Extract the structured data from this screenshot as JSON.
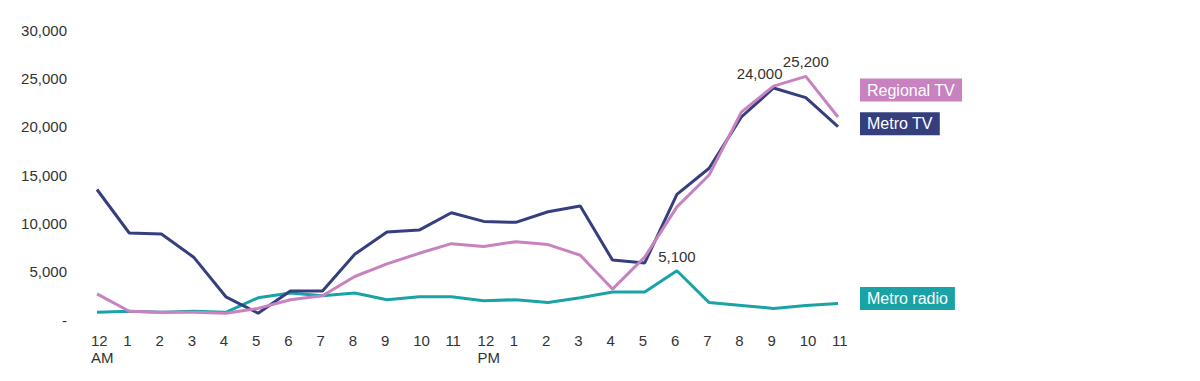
{
  "chart_data": {
    "type": "line",
    "categories": [
      "12\nAM",
      "1",
      "2",
      "3",
      "4",
      "5",
      "6",
      "7",
      "8",
      "9",
      "10",
      "11",
      "12\nPM",
      "1",
      "2",
      "3",
      "4",
      "5",
      "6",
      "7",
      "8",
      "9",
      "10",
      "11"
    ],
    "series": [
      {
        "name": "Regional TV",
        "color": "#c882c0",
        "values": [
          2700,
          900,
          800,
          800,
          700,
          1200,
          2100,
          2500,
          4500,
          5800,
          6900,
          7900,
          7600,
          8100,
          7800,
          6700,
          3200,
          6500,
          11700,
          15000,
          21500,
          24200,
          25200,
          21000
        ],
        "value_labels": [
          null,
          null,
          null,
          null,
          null,
          null,
          null,
          null,
          null,
          null,
          null,
          null,
          null,
          null,
          null,
          null,
          null,
          null,
          null,
          null,
          null,
          null,
          "25,200",
          null
        ]
      },
      {
        "name": "Metro TV",
        "color": "#353f7e",
        "values": [
          13500,
          9000,
          8900,
          6500,
          2400,
          700,
          3000,
          3000,
          6800,
          9100,
          9300,
          11100,
          10200,
          10100,
          11200,
          11800,
          6200,
          5900,
          13000,
          15700,
          21000,
          24000,
          23000,
          20000
        ],
        "value_labels": [
          null,
          null,
          null,
          null,
          null,
          null,
          null,
          null,
          null,
          null,
          null,
          null,
          null,
          null,
          null,
          null,
          null,
          null,
          null,
          null,
          null,
          "24,000",
          null,
          null
        ]
      },
      {
        "name": "Metro radio",
        "color": "#1aa3a6",
        "values": [
          800,
          900,
          800,
          900,
          800,
          2300,
          2800,
          2500,
          2800,
          2100,
          2400,
          2400,
          2000,
          2100,
          1800,
          2300,
          2900,
          2900,
          5100,
          1800,
          1500,
          1200,
          1500,
          1700
        ],
        "value_labels": [
          null,
          null,
          null,
          null,
          null,
          null,
          null,
          null,
          null,
          null,
          null,
          null,
          null,
          null,
          null,
          null,
          null,
          null,
          "5,100",
          null,
          null,
          null,
          null,
          null
        ]
      }
    ],
    "ylim": [
      0,
      30000
    ],
    "yticks": [
      {
        "value": 0,
        "label": "-"
      },
      {
        "value": 5000,
        "label": "5,000"
      },
      {
        "value": 10000,
        "label": "10,000"
      },
      {
        "value": 15000,
        "label": "15,000"
      },
      {
        "value": 20000,
        "label": "20,000"
      },
      {
        "value": 25000,
        "label": "25,000"
      },
      {
        "value": 30000,
        "label": "30,000"
      }
    ],
    "grid": false
  }
}
